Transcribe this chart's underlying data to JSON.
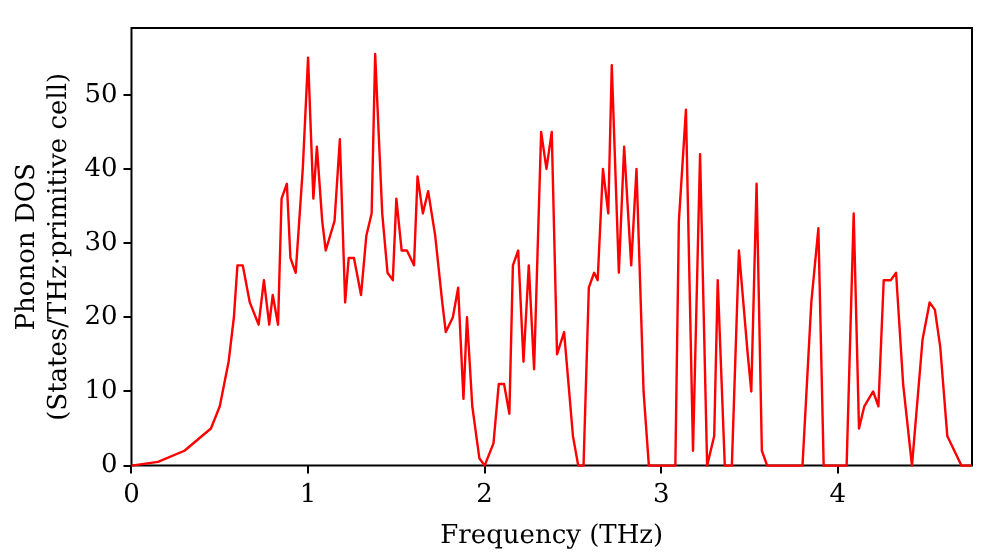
{
  "chart_data": {
    "type": "line",
    "xlabel": "Frequency (THz)",
    "ylabel": "Phonon DOS\n(States/THz·primitive cell)",
    "xlim": [
      0,
      4.76
    ],
    "ylim": [
      0,
      59
    ],
    "xticks": [
      0,
      1,
      2,
      3,
      4
    ],
    "yticks": [
      0,
      10,
      20,
      30,
      40,
      50
    ],
    "grid": false,
    "legend": false,
    "marker": "none",
    "line_style": "solid",
    "series": [
      {
        "color": "#ff0000",
        "x": [
          0,
          0.15,
          0.3,
          0.45,
          0.5,
          0.55,
          0.58,
          0.6,
          0.63,
          0.67,
          0.72,
          0.75,
          0.78,
          0.8,
          0.83,
          0.85,
          0.88,
          0.9,
          0.93,
          0.97,
          1.0,
          1.03,
          1.05,
          1.08,
          1.1,
          1.15,
          1.18,
          1.21,
          1.23,
          1.26,
          1.3,
          1.33,
          1.36,
          1.38,
          1.42,
          1.45,
          1.48,
          1.5,
          1.53,
          1.56,
          1.6,
          1.62,
          1.65,
          1.68,
          1.72,
          1.76,
          1.78,
          1.82,
          1.85,
          1.88,
          1.9,
          1.93,
          1.97,
          2.0,
          2.05,
          2.08,
          2.11,
          2.14,
          2.16,
          2.19,
          2.22,
          2.25,
          2.28,
          2.32,
          2.35,
          2.38,
          2.41,
          2.45,
          2.5,
          2.53,
          2.56,
          2.59,
          2.62,
          2.64,
          2.67,
          2.7,
          2.72,
          2.76,
          2.79,
          2.83,
          2.86,
          2.9,
          2.93,
          3.0,
          3.08,
          3.1,
          3.14,
          3.18,
          3.22,
          3.26,
          3.3,
          3.32,
          3.36,
          3.4,
          3.44,
          3.49,
          3.51,
          3.54,
          3.57,
          3.6,
          3.8,
          3.85,
          3.89,
          3.92,
          4.05,
          4.09,
          4.12,
          4.15,
          4.2,
          4.23,
          4.26,
          4.3,
          4.33,
          4.37,
          4.42,
          4.48,
          4.52,
          4.55,
          4.58,
          4.62,
          4.7,
          4.76
        ],
        "values": [
          0,
          0.5,
          2,
          5,
          8,
          14,
          20,
          27,
          27,
          22,
          19,
          25,
          19,
          23,
          19,
          36,
          38,
          28,
          26,
          40,
          55,
          36,
          43,
          33,
          29,
          33,
          44,
          22,
          28,
          28,
          23,
          31,
          34,
          55.5,
          34,
          26,
          25,
          36,
          29,
          29,
          27,
          39,
          34,
          37,
          31,
          22,
          18,
          20,
          24,
          9,
          20,
          8,
          1,
          0,
          3,
          11,
          11,
          7,
          27,
          29,
          14,
          27,
          13,
          45,
          40,
          45,
          15,
          18,
          4,
          0,
          0,
          24,
          26,
          25,
          40,
          34,
          54,
          26,
          43,
          27,
          40,
          10,
          0,
          0,
          0,
          33,
          48,
          2,
          42,
          0,
          4,
          25,
          0,
          0,
          29,
          15,
          10,
          38,
          2,
          0,
          0,
          22,
          32,
          0,
          0,
          34,
          5,
          8,
          10,
          8,
          25,
          25,
          26,
          11,
          0,
          17,
          22,
          21,
          16,
          4,
          0,
          0
        ]
      }
    ]
  }
}
